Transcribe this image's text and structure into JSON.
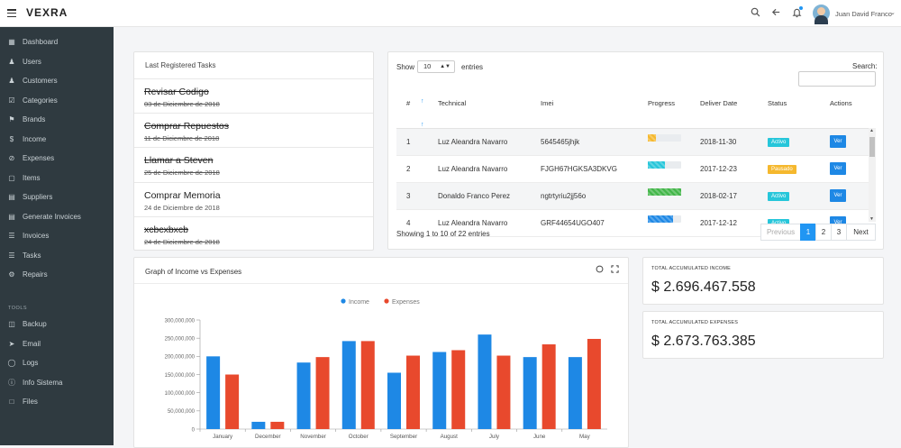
{
  "header": {
    "logo": "VEXRA",
    "user_name": "Juan David Franco"
  },
  "sidebar": {
    "items": [
      {
        "label": "Dashboard",
        "icon": "dashboard-icon"
      },
      {
        "label": "Users",
        "icon": "user-icon"
      },
      {
        "label": "Customers",
        "icon": "customers-icon"
      },
      {
        "label": "Categories",
        "icon": "categories-icon"
      },
      {
        "label": "Brands",
        "icon": "tag-icon"
      },
      {
        "label": "Income",
        "icon": "dollar-icon"
      },
      {
        "label": "Expenses",
        "icon": "expenses-icon"
      },
      {
        "label": "Items",
        "icon": "box-icon"
      },
      {
        "label": "Suppliers",
        "icon": "book-icon"
      },
      {
        "label": "Generate Invoices",
        "icon": "invoice-icon"
      },
      {
        "label": "Invoices",
        "icon": "layers-icon"
      },
      {
        "label": "Tasks",
        "icon": "tasks-icon"
      },
      {
        "label": "Repairs",
        "icon": "wrench-icon"
      }
    ],
    "tools_title": "TOOLS",
    "tools": [
      {
        "label": "Backup",
        "icon": "database-icon"
      },
      {
        "label": "Email",
        "icon": "send-icon"
      },
      {
        "label": "Logs",
        "icon": "globe-icon"
      },
      {
        "label": "Info Sistema",
        "icon": "info-icon"
      },
      {
        "label": "Files",
        "icon": "folder-icon"
      }
    ]
  },
  "tasks": {
    "title": "Last Registered Tasks",
    "items": [
      {
        "name": "Revisar Codigo",
        "date": "03 de Diciembre de 2018",
        "done": true
      },
      {
        "name": "Comprar Repuestos",
        "date": "11 de Diciembre de 2018",
        "done": true
      },
      {
        "name": "Llamar a Steven",
        "date": "25 de Diciembre de 2018",
        "done": true
      },
      {
        "name": "Comprar Memoria",
        "date": "24 de Diciembre de 2018",
        "done": false
      },
      {
        "name": "xcbcxbxcb",
        "date": "24 de Diciembre de 2018",
        "done": true
      }
    ]
  },
  "table": {
    "show_label": "Show",
    "entries_value": "10",
    "entries_label": "entries",
    "search_label": "Search:",
    "columns": [
      "#",
      "Technical",
      "Imei",
      "Progress",
      "Deliver Date",
      "Status",
      "Actions"
    ],
    "rows": [
      {
        "num": "1",
        "technical": "Luz Aleandra Navarro",
        "imei": "5645465jhjk",
        "progress": 0.25,
        "progress_color": "#f5b82e",
        "date": "2018-11-30",
        "status": "Activo",
        "status_color": "#26c6da",
        "action": "Ver"
      },
      {
        "num": "2",
        "technical": "Luz Aleandra Navarro",
        "imei": "FJGH67HGKSA3DKVG",
        "progress": 0.5,
        "progress_color": "#26c6da",
        "date": "2017-12-23",
        "status": "Pausado",
        "status_color": "#f5b82e",
        "action": "Ver"
      },
      {
        "num": "3",
        "technical": "Donaldo Franco Perez",
        "imei": "ngtrtyriu2jj56o",
        "progress": 1.0,
        "progress_color": "#43b649",
        "date": "2018-02-17",
        "status": "Activo",
        "status_color": "#26c6da",
        "action": "Ver"
      },
      {
        "num": "4",
        "technical": "Luz Aleandra Navarro",
        "imei": "GRF44654UGO407",
        "progress": 0.75,
        "progress_color": "#1e88e5",
        "date": "2017-12-12",
        "status": "Activo",
        "status_color": "#26c6da",
        "action": "Ver"
      }
    ],
    "showing_text": "Showing 1 to 10 of 22 entries",
    "pagination": {
      "previous": "Previous",
      "pages": [
        "1",
        "2",
        "3"
      ],
      "next": "Next"
    }
  },
  "chart_card": {
    "title": "Graph of Income vs Expenses"
  },
  "chart_data": {
    "type": "bar",
    "categories": [
      "January",
      "December",
      "November",
      "October",
      "September",
      "August",
      "July",
      "June",
      "May"
    ],
    "series": [
      {
        "name": "Income",
        "color": "#1e88e5",
        "values": [
          200000000,
          20000000,
          183000000,
          242000000,
          155000000,
          212000000,
          260000000,
          198000000,
          198000000
        ]
      },
      {
        "name": "Expenses",
        "color": "#e8492d",
        "values": [
          150000000,
          20000000,
          198000000,
          242000000,
          202000000,
          217000000,
          202000000,
          233000000,
          248000000
        ]
      }
    ],
    "yticks": [
      "0",
      "50,000,000",
      "100,000,000",
      "150,000,000",
      "200,000,000",
      "250,000,000",
      "300,000,000"
    ],
    "ylim": [
      0,
      300000000
    ],
    "legend": "top-center",
    "grid": false
  },
  "totals": {
    "income_title": "TOTAL ACCUMULATED INCOME",
    "income_value": "$ 2.696.467.558",
    "expenses_title": "TOTAL ACCUMULATED EXPENSES",
    "expenses_value": "$ 2.673.763.385"
  }
}
